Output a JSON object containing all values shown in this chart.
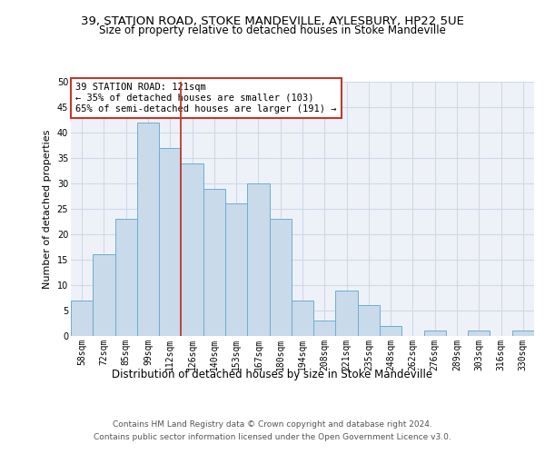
{
  "title_line1": "39, STATION ROAD, STOKE MANDEVILLE, AYLESBURY, HP22 5UE",
  "title_line2": "Size of property relative to detached houses in Stoke Mandeville",
  "xlabel": "Distribution of detached houses by size in Stoke Mandeville",
  "ylabel": "Number of detached properties",
  "bar_labels": [
    "58sqm",
    "72sqm",
    "85sqm",
    "99sqm",
    "112sqm",
    "126sqm",
    "140sqm",
    "153sqm",
    "167sqm",
    "180sqm",
    "194sqm",
    "208sqm",
    "221sqm",
    "235sqm",
    "248sqm",
    "262sqm",
    "276sqm",
    "289sqm",
    "303sqm",
    "316sqm",
    "330sqm"
  ],
  "bar_values": [
    7,
    16,
    23,
    42,
    37,
    34,
    29,
    26,
    30,
    23,
    7,
    3,
    9,
    6,
    2,
    0,
    1,
    0,
    1,
    0,
    1
  ],
  "bar_color": "#c9daea",
  "bar_edge_color": "#6aaed6",
  "vline_x": 4.5,
  "vline_color": "#c0392b",
  "annotation_text": "39 STATION ROAD: 121sqm\n← 35% of detached houses are smaller (103)\n65% of semi-detached houses are larger (191) →",
  "annotation_box_color": "white",
  "annotation_box_edge_color": "#c0392b",
  "ylim": [
    0,
    50
  ],
  "yticks": [
    0,
    5,
    10,
    15,
    20,
    25,
    30,
    35,
    40,
    45,
    50
  ],
  "grid_color": "#d0d8e8",
  "background_color": "#eef2f8",
  "footer_line1": "Contains HM Land Registry data © Crown copyright and database right 2024.",
  "footer_line2": "Contains public sector information licensed under the Open Government Licence v3.0.",
  "title_fontsize": 9.5,
  "subtitle_fontsize": 8.5,
  "xlabel_fontsize": 8.5,
  "ylabel_fontsize": 8,
  "tick_fontsize": 7,
  "annotation_fontsize": 7.5,
  "footer_fontsize": 6.5
}
